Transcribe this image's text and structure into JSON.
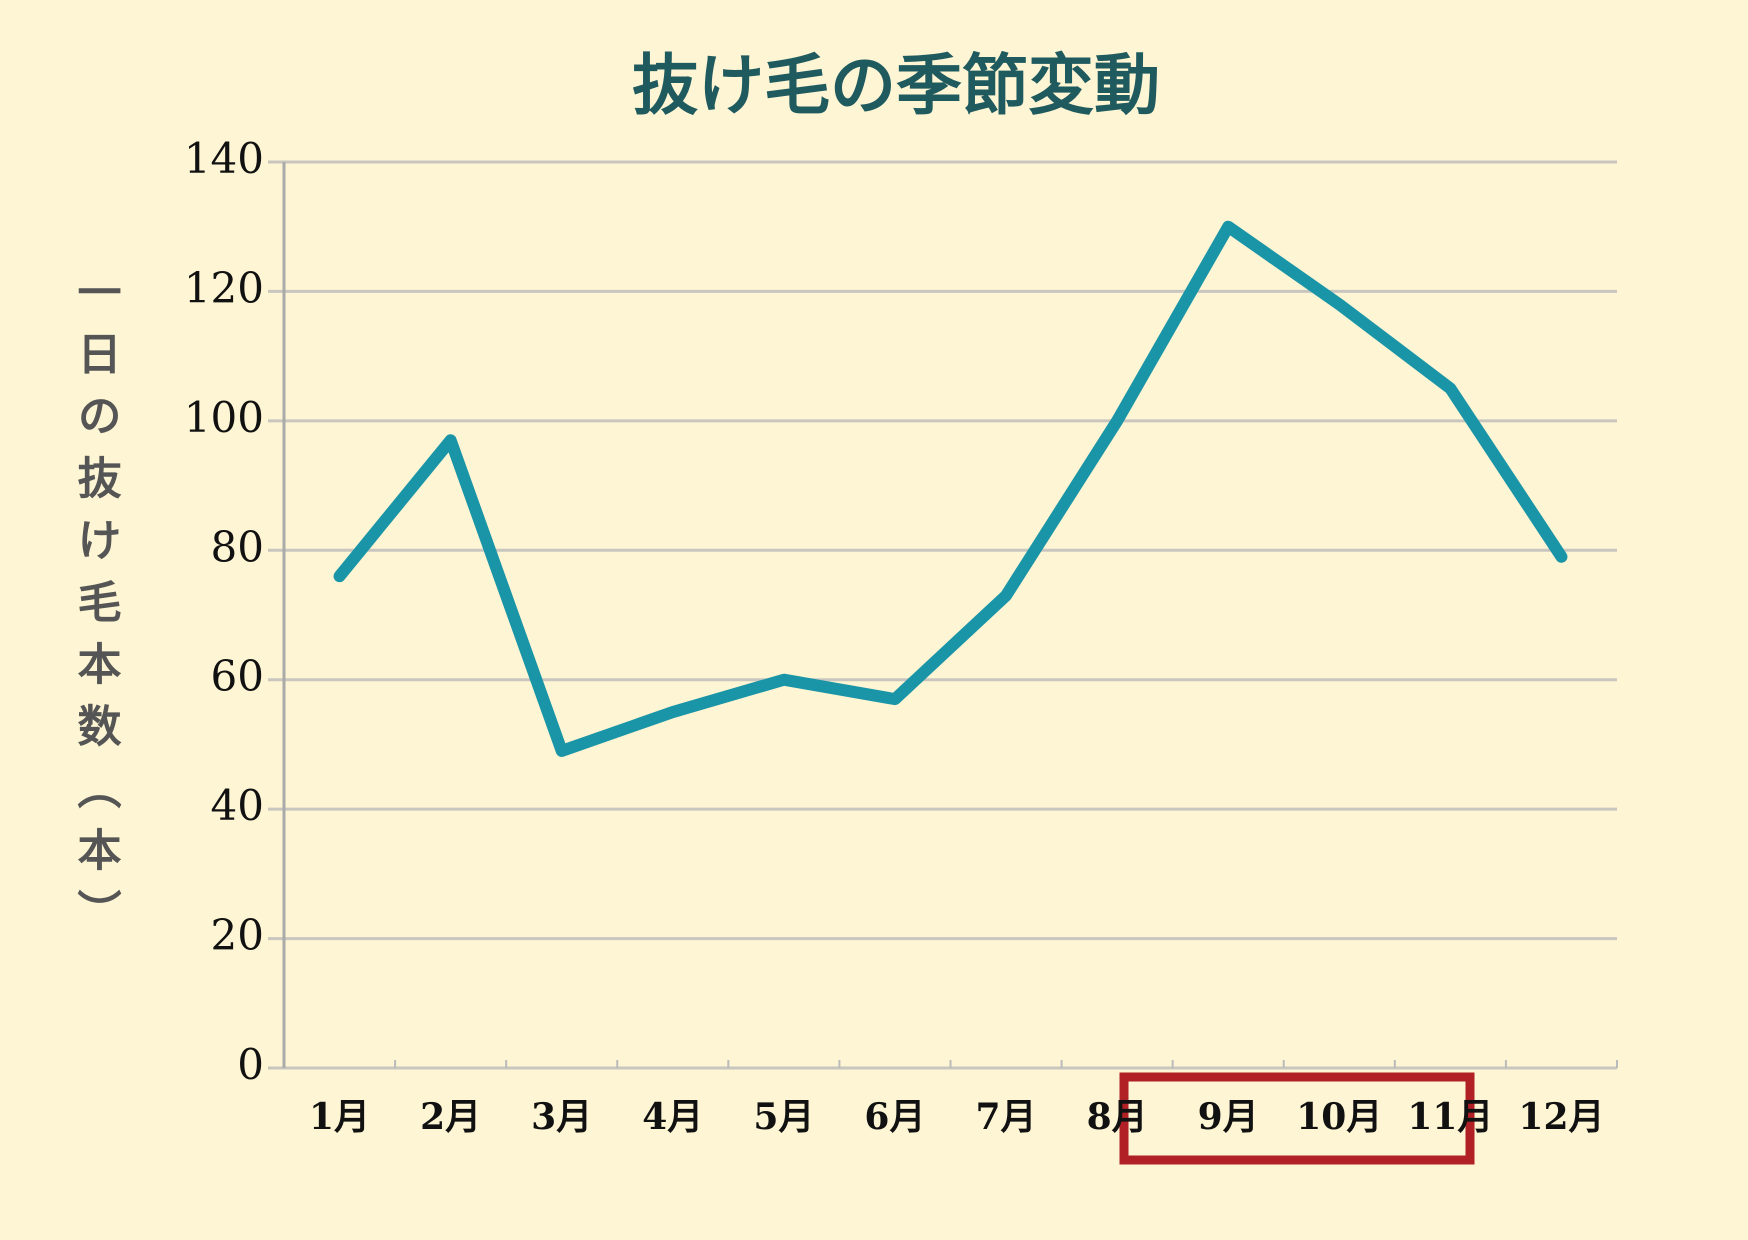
{
  "chart_data": {
    "type": "line",
    "title": "抜け毛の季節変動",
    "y_label": "一日の抜け毛本数（本）",
    "categories": [
      "1月",
      "2月",
      "3月",
      "4月",
      "5月",
      "6月",
      "7月",
      "8月",
      "9月",
      "10月",
      "11月",
      "12月"
    ],
    "series": [
      {
        "name": "抜け毛本数",
        "color": "#1a95a8",
        "values": [
          76,
          97,
          49,
          55,
          60,
          57,
          73,
          100,
          130,
          118,
          105,
          79
        ]
      }
    ],
    "ylim": [
      0,
      140
    ],
    "yticks": [
      0,
      20,
      40,
      60,
      80,
      100,
      120,
      140
    ],
    "grid": true
  }
}
